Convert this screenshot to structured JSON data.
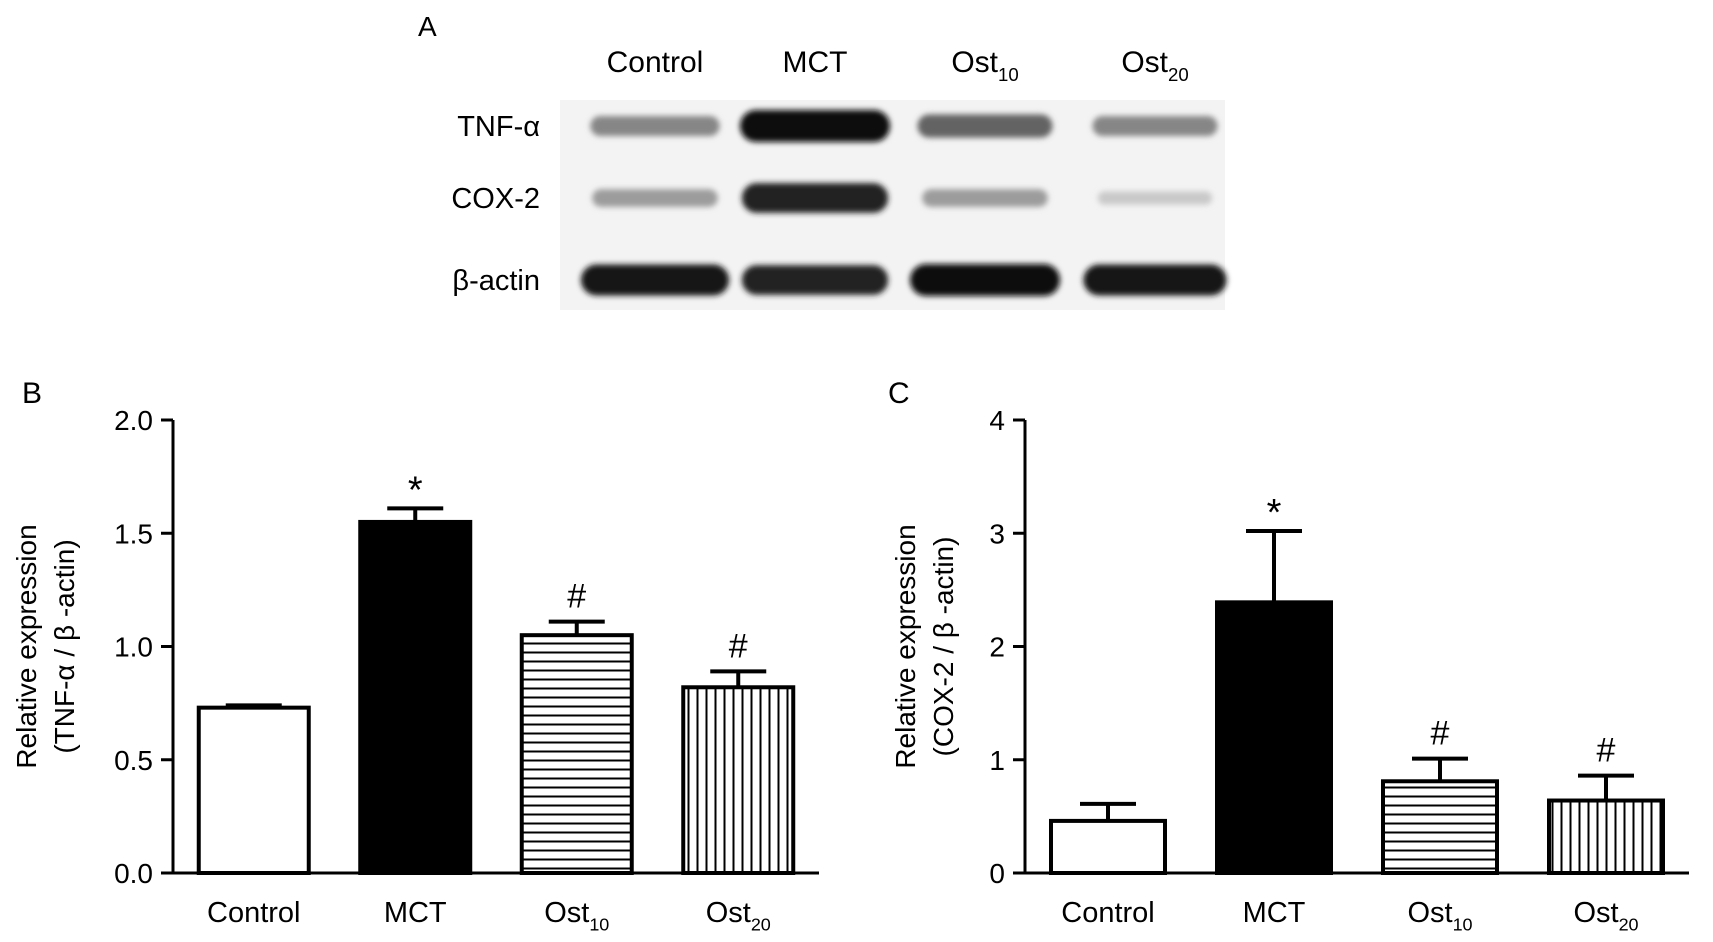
{
  "panel_a": {
    "label": "A",
    "lanes": [
      {
        "base": "Control",
        "sub": ""
      },
      {
        "base": "MCT",
        "sub": ""
      },
      {
        "base": "Ost",
        "sub": "10"
      },
      {
        "base": "Ost",
        "sub": "20"
      }
    ],
    "rows": [
      {
        "label": "TNF-α",
        "intensity": [
          0.45,
          1.0,
          0.6,
          0.45
        ]
      },
      {
        "label": "COX-2",
        "intensity": [
          0.35,
          0.9,
          0.35,
          0.15
        ]
      },
      {
        "label": "β-actin",
        "intensity": [
          0.95,
          0.9,
          1.0,
          0.95
        ]
      }
    ]
  },
  "chart_data": [
    {
      "type": "bar",
      "panel_label": "B",
      "categories": [
        {
          "base": "Control",
          "sub": ""
        },
        {
          "base": "MCT",
          "sub": ""
        },
        {
          "base": "Ost",
          "sub": "10"
        },
        {
          "base": "Ost",
          "sub": "20"
        }
      ],
      "values": [
        0.73,
        1.55,
        1.05,
        0.82
      ],
      "errors": [
        0.01,
        0.06,
        0.06,
        0.07
      ],
      "annotations": [
        "",
        "*",
        "#",
        "#"
      ],
      "fills": [
        "white",
        "black",
        "hstripe",
        "vstripe"
      ],
      "ylabel_line1": "Relative expression",
      "ylabel_line2": "(TNF-α / β -actin)",
      "ylim": [
        0,
        2.0
      ],
      "yticks": [
        "0.0",
        "0.5",
        "1.0",
        "1.5",
        "2.0"
      ]
    },
    {
      "type": "bar",
      "panel_label": "C",
      "categories": [
        {
          "base": "Control",
          "sub": ""
        },
        {
          "base": "MCT",
          "sub": ""
        },
        {
          "base": "Ost",
          "sub": "10"
        },
        {
          "base": "Ost",
          "sub": "20"
        }
      ],
      "values": [
        0.46,
        2.39,
        0.81,
        0.64
      ],
      "errors": [
        0.15,
        0.63,
        0.2,
        0.22
      ],
      "annotations": [
        "",
        "*",
        "#",
        "#"
      ],
      "fills": [
        "white",
        "black",
        "hstripe",
        "vstripe"
      ],
      "ylabel_line1": "Relative expression",
      "ylabel_line2": "(COX-2 / β -actin)",
      "ylim": [
        0,
        4
      ],
      "yticks": [
        "0",
        "1",
        "2",
        "3",
        "4"
      ]
    }
  ]
}
